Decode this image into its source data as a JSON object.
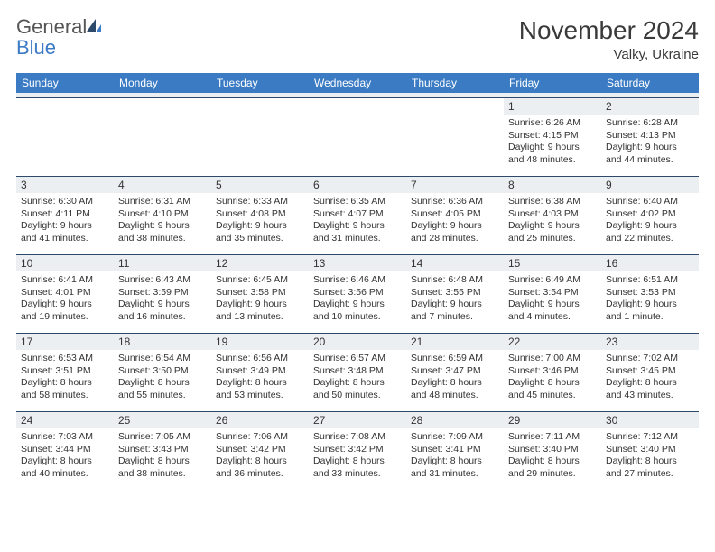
{
  "brand": {
    "general": "General",
    "blue": "Blue"
  },
  "title": {
    "month": "November 2024",
    "location": "Valky, Ukraine"
  },
  "colors": {
    "header_bg": "#3b7bc4",
    "header_text": "#ffffff",
    "daynum_bg": "#eceff2",
    "border": "#2e4a6b",
    "text": "#333333"
  },
  "day_names": [
    "Sunday",
    "Monday",
    "Tuesday",
    "Wednesday",
    "Thursday",
    "Friday",
    "Saturday"
  ],
  "weeks": [
    [
      null,
      null,
      null,
      null,
      null,
      {
        "n": "1",
        "sr": "Sunrise: 6:26 AM",
        "ss": "Sunset: 4:15 PM",
        "dl1": "Daylight: 9 hours",
        "dl2": "and 48 minutes."
      },
      {
        "n": "2",
        "sr": "Sunrise: 6:28 AM",
        "ss": "Sunset: 4:13 PM",
        "dl1": "Daylight: 9 hours",
        "dl2": "and 44 minutes."
      }
    ],
    [
      {
        "n": "3",
        "sr": "Sunrise: 6:30 AM",
        "ss": "Sunset: 4:11 PM",
        "dl1": "Daylight: 9 hours",
        "dl2": "and 41 minutes."
      },
      {
        "n": "4",
        "sr": "Sunrise: 6:31 AM",
        "ss": "Sunset: 4:10 PM",
        "dl1": "Daylight: 9 hours",
        "dl2": "and 38 minutes."
      },
      {
        "n": "5",
        "sr": "Sunrise: 6:33 AM",
        "ss": "Sunset: 4:08 PM",
        "dl1": "Daylight: 9 hours",
        "dl2": "and 35 minutes."
      },
      {
        "n": "6",
        "sr": "Sunrise: 6:35 AM",
        "ss": "Sunset: 4:07 PM",
        "dl1": "Daylight: 9 hours",
        "dl2": "and 31 minutes."
      },
      {
        "n": "7",
        "sr": "Sunrise: 6:36 AM",
        "ss": "Sunset: 4:05 PM",
        "dl1": "Daylight: 9 hours",
        "dl2": "and 28 minutes."
      },
      {
        "n": "8",
        "sr": "Sunrise: 6:38 AM",
        "ss": "Sunset: 4:03 PM",
        "dl1": "Daylight: 9 hours",
        "dl2": "and 25 minutes."
      },
      {
        "n": "9",
        "sr": "Sunrise: 6:40 AM",
        "ss": "Sunset: 4:02 PM",
        "dl1": "Daylight: 9 hours",
        "dl2": "and 22 minutes."
      }
    ],
    [
      {
        "n": "10",
        "sr": "Sunrise: 6:41 AM",
        "ss": "Sunset: 4:01 PM",
        "dl1": "Daylight: 9 hours",
        "dl2": "and 19 minutes."
      },
      {
        "n": "11",
        "sr": "Sunrise: 6:43 AM",
        "ss": "Sunset: 3:59 PM",
        "dl1": "Daylight: 9 hours",
        "dl2": "and 16 minutes."
      },
      {
        "n": "12",
        "sr": "Sunrise: 6:45 AM",
        "ss": "Sunset: 3:58 PM",
        "dl1": "Daylight: 9 hours",
        "dl2": "and 13 minutes."
      },
      {
        "n": "13",
        "sr": "Sunrise: 6:46 AM",
        "ss": "Sunset: 3:56 PM",
        "dl1": "Daylight: 9 hours",
        "dl2": "and 10 minutes."
      },
      {
        "n": "14",
        "sr": "Sunrise: 6:48 AM",
        "ss": "Sunset: 3:55 PM",
        "dl1": "Daylight: 9 hours",
        "dl2": "and 7 minutes."
      },
      {
        "n": "15",
        "sr": "Sunrise: 6:49 AM",
        "ss": "Sunset: 3:54 PM",
        "dl1": "Daylight: 9 hours",
        "dl2": "and 4 minutes."
      },
      {
        "n": "16",
        "sr": "Sunrise: 6:51 AM",
        "ss": "Sunset: 3:53 PM",
        "dl1": "Daylight: 9 hours",
        "dl2": "and 1 minute."
      }
    ],
    [
      {
        "n": "17",
        "sr": "Sunrise: 6:53 AM",
        "ss": "Sunset: 3:51 PM",
        "dl1": "Daylight: 8 hours",
        "dl2": "and 58 minutes."
      },
      {
        "n": "18",
        "sr": "Sunrise: 6:54 AM",
        "ss": "Sunset: 3:50 PM",
        "dl1": "Daylight: 8 hours",
        "dl2": "and 55 minutes."
      },
      {
        "n": "19",
        "sr": "Sunrise: 6:56 AM",
        "ss": "Sunset: 3:49 PM",
        "dl1": "Daylight: 8 hours",
        "dl2": "and 53 minutes."
      },
      {
        "n": "20",
        "sr": "Sunrise: 6:57 AM",
        "ss": "Sunset: 3:48 PM",
        "dl1": "Daylight: 8 hours",
        "dl2": "and 50 minutes."
      },
      {
        "n": "21",
        "sr": "Sunrise: 6:59 AM",
        "ss": "Sunset: 3:47 PM",
        "dl1": "Daylight: 8 hours",
        "dl2": "and 48 minutes."
      },
      {
        "n": "22",
        "sr": "Sunrise: 7:00 AM",
        "ss": "Sunset: 3:46 PM",
        "dl1": "Daylight: 8 hours",
        "dl2": "and 45 minutes."
      },
      {
        "n": "23",
        "sr": "Sunrise: 7:02 AM",
        "ss": "Sunset: 3:45 PM",
        "dl1": "Daylight: 8 hours",
        "dl2": "and 43 minutes."
      }
    ],
    [
      {
        "n": "24",
        "sr": "Sunrise: 7:03 AM",
        "ss": "Sunset: 3:44 PM",
        "dl1": "Daylight: 8 hours",
        "dl2": "and 40 minutes."
      },
      {
        "n": "25",
        "sr": "Sunrise: 7:05 AM",
        "ss": "Sunset: 3:43 PM",
        "dl1": "Daylight: 8 hours",
        "dl2": "and 38 minutes."
      },
      {
        "n": "26",
        "sr": "Sunrise: 7:06 AM",
        "ss": "Sunset: 3:42 PM",
        "dl1": "Daylight: 8 hours",
        "dl2": "and 36 minutes."
      },
      {
        "n": "27",
        "sr": "Sunrise: 7:08 AM",
        "ss": "Sunset: 3:42 PM",
        "dl1": "Daylight: 8 hours",
        "dl2": "and 33 minutes."
      },
      {
        "n": "28",
        "sr": "Sunrise: 7:09 AM",
        "ss": "Sunset: 3:41 PM",
        "dl1": "Daylight: 8 hours",
        "dl2": "and 31 minutes."
      },
      {
        "n": "29",
        "sr": "Sunrise: 7:11 AM",
        "ss": "Sunset: 3:40 PM",
        "dl1": "Daylight: 8 hours",
        "dl2": "and 29 minutes."
      },
      {
        "n": "30",
        "sr": "Sunrise: 7:12 AM",
        "ss": "Sunset: 3:40 PM",
        "dl1": "Daylight: 8 hours",
        "dl2": "and 27 minutes."
      }
    ]
  ]
}
